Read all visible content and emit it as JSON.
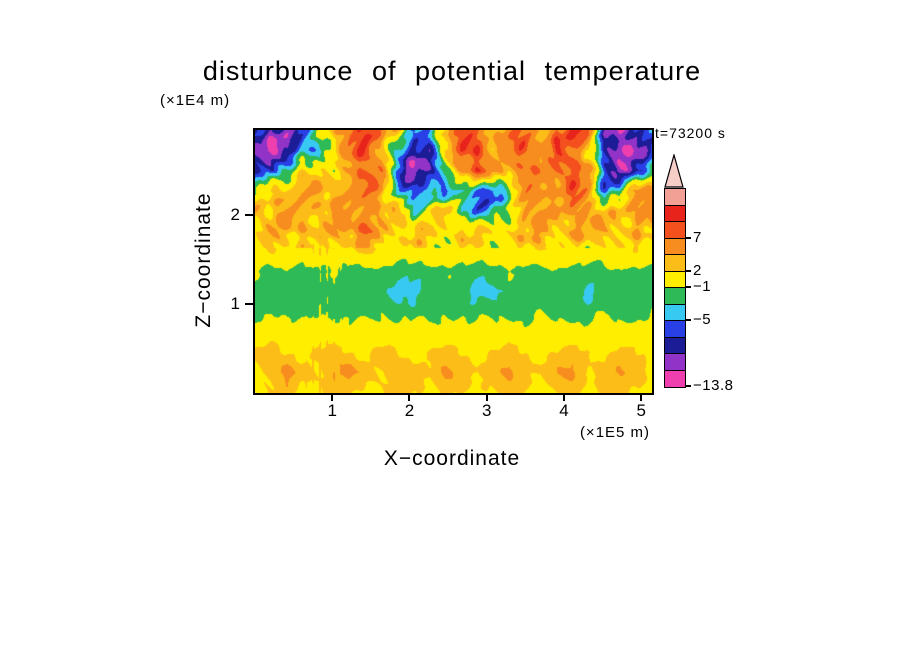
{
  "chart_data": {
    "type": "heatmap",
    "title": "disturbunce of potential temperature",
    "time_annotation": "t=73200 s",
    "xlabel": "X−coordinate",
    "x_unit": "(×1E5 m)",
    "ylabel": "Z−coordinate",
    "y_unit": "(×1E4 m)",
    "xlim": [
      0,
      5.14
    ],
    "ylim": [
      0,
      2.96
    ],
    "x_ticks": [
      1,
      2,
      3,
      4,
      5
    ],
    "y_ticks": [
      1,
      2
    ],
    "levels": [
      -13.8,
      -11,
      -9,
      -7,
      -5,
      -3,
      -1,
      2,
      4,
      7,
      9,
      11,
      13.8
    ],
    "colors": [
      "#ef3fae",
      "#9133c7",
      "#1c1c96",
      "#2940e6",
      "#38c9f2",
      "#2eba57",
      "#ffee00",
      "#fcbd18",
      "#f78d1e",
      "#f4501e",
      "#e8231c",
      "#f2a096"
    ],
    "over_color": "#f6cdc7",
    "colorbar_labels": [
      {
        "value": 7,
        "text": "7"
      },
      {
        "value": 2,
        "text": "2"
      },
      {
        "value": -1,
        "text": "−1"
      },
      {
        "value": -5,
        "text": "−5"
      },
      {
        "value": -13.8,
        "text": "−13.8"
      }
    ],
    "grid": [
      [
        -8,
        -10,
        -9,
        -5,
        -2,
        3,
        8,
        10,
        5,
        3,
        -6,
        -4,
        4,
        8,
        6,
        3,
        7,
        5,
        3,
        8,
        9,
        6,
        -7,
        -10,
        -9,
        -6
      ],
      [
        -9,
        -12,
        -10,
        -5,
        -3,
        2,
        6,
        9,
        4,
        -5,
        -9,
        -7,
        3,
        7,
        9,
        4,
        6,
        8,
        4,
        9,
        7,
        3,
        -8,
        -11,
        -10,
        -7
      ],
      [
        -6,
        -8,
        -4,
        3,
        2,
        -2,
        5,
        8,
        6,
        -7,
        -11,
        -8,
        -3,
        5,
        8,
        6,
        4,
        7,
        5,
        8,
        9,
        5,
        -6,
        -9,
        -8,
        -4
      ],
      [
        -3,
        3,
        4,
        5,
        3,
        4,
        6,
        7,
        4,
        -4,
        -6,
        -4,
        -5,
        -3,
        -5,
        -6,
        -3,
        5,
        6,
        4,
        7,
        5,
        -5,
        -3,
        4,
        6
      ],
      [
        4,
        3,
        5,
        4,
        3,
        5,
        4,
        6,
        3,
        3,
        -3,
        2,
        3,
        -3,
        -5,
        -4,
        -2,
        4,
        5,
        3,
        5,
        4,
        2,
        3,
        5,
        4
      ],
      [
        2,
        3,
        3,
        4,
        3,
        4,
        5,
        8,
        4,
        2,
        3,
        3,
        2,
        3,
        2,
        2,
        3,
        3,
        4,
        3,
        5,
        3,
        4,
        3,
        3,
        2
      ],
      [
        1,
        2,
        1,
        1,
        2,
        1,
        1,
        3,
        1,
        0,
        1,
        1,
        0,
        1,
        1,
        0,
        1,
        1,
        2,
        1,
        1,
        0,
        1,
        1,
        2,
        1
      ],
      [
        -1,
        -2,
        -1,
        -2,
        -2,
        -1,
        -2,
        -2,
        -1,
        -2,
        -2,
        -2,
        -1,
        -2,
        -2,
        -2,
        -1,
        -2,
        -2,
        -1,
        -2,
        -2,
        -2,
        -1,
        -2,
        -2
      ],
      [
        -2,
        -2,
        -2,
        -2,
        -2,
        -2,
        -2,
        -2,
        -2,
        -4,
        -4,
        -2,
        -2,
        -2,
        -4,
        -4,
        -2,
        -2,
        -2,
        -2,
        -2,
        -4,
        -2,
        -2,
        -2,
        -2
      ],
      [
        -2,
        -1,
        -2,
        -2,
        -1,
        -2,
        -2,
        -2,
        -1,
        -2,
        -2,
        -2,
        -1,
        -2,
        -2,
        -1,
        -2,
        -2,
        -1,
        -2,
        -2,
        -2,
        -1,
        -2,
        -2,
        -1
      ],
      [
        0,
        1,
        0,
        0,
        1,
        0,
        0,
        1,
        0,
        0,
        1,
        0,
        0,
        1,
        0,
        0,
        1,
        0,
        0,
        1,
        0,
        0,
        1,
        0,
        0,
        1
      ],
      [
        2,
        3,
        2,
        1,
        2,
        3,
        2,
        1,
        3,
        2,
        1,
        2,
        3,
        2,
        1,
        2,
        3,
        2,
        1,
        2,
        3,
        2,
        1,
        3,
        2,
        1
      ],
      [
        2,
        3,
        5,
        3,
        2,
        4,
        5,
        3,
        2,
        4,
        3,
        2,
        5,
        4,
        2,
        3,
        5,
        3,
        2,
        4,
        5,
        2,
        3,
        4,
        3,
        2
      ],
      [
        1,
        2,
        3,
        1,
        2,
        3,
        2,
        1,
        2,
        3,
        2,
        1,
        3,
        2,
        1,
        2,
        3,
        2,
        1,
        2,
        3,
        1,
        2,
        3,
        2,
        1
      ]
    ]
  }
}
